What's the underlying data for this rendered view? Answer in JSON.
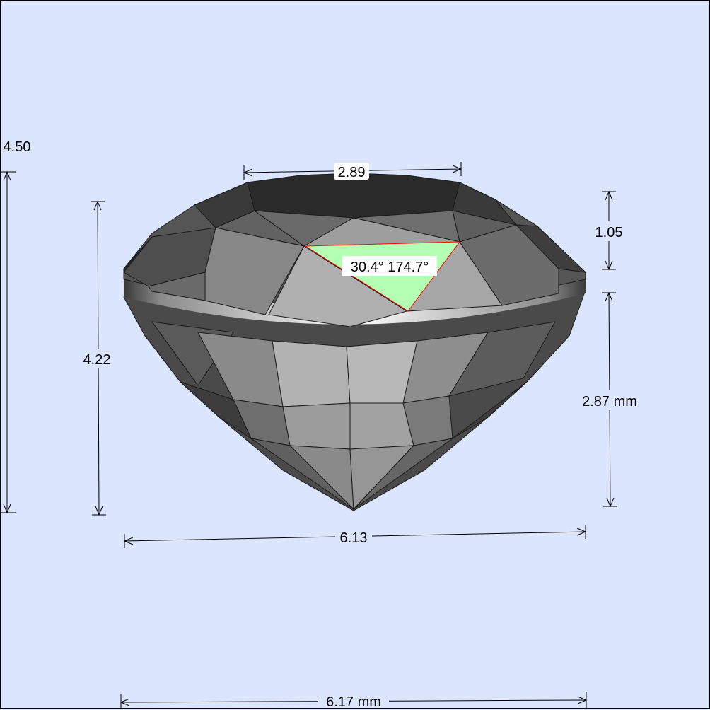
{
  "measurements": {
    "total_height": "4.50",
    "table_width": "2.89",
    "crown_height": "1.05",
    "body_height": "4.22",
    "pavilion_depth": "2.87 mm",
    "girdle_width": "6.13",
    "total_width": "6.17 mm"
  },
  "facet_angles": "30.4°  174.7°",
  "colors": {
    "background": "#dbe6fe",
    "highlight_facet": "#b3ffb3",
    "highlight_outline": "#ff0000",
    "frame": "#000000"
  }
}
